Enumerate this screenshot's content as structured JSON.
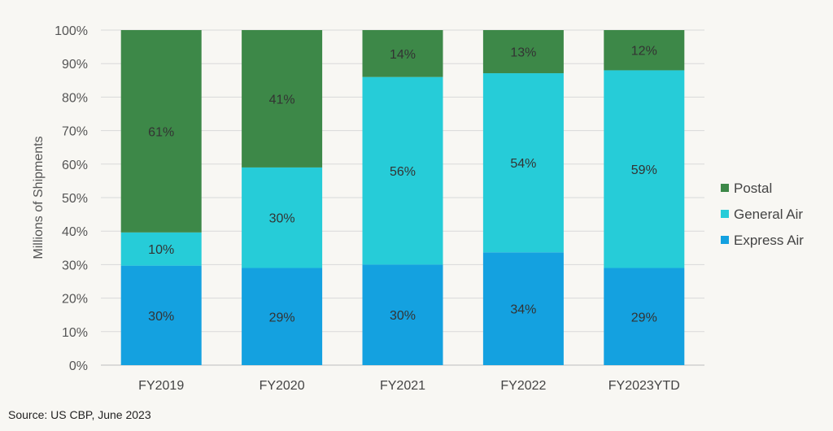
{
  "source_note": "Source: US CBP, June 2023",
  "chart_data": {
    "type": "bar",
    "stacked": true,
    "percent": true,
    "categories": [
      "FY2019",
      "FY2020",
      "FY2021",
      "FY2022",
      "FY2023YTD"
    ],
    "series": [
      {
        "name": "Express Air",
        "color": "#14a1e0",
        "values": [
          30,
          29,
          30,
          34,
          29
        ],
        "labels": [
          "30%",
          "29%",
          "30%",
          "34%",
          "29%"
        ]
      },
      {
        "name": "General Air",
        "color": "#26ccd8",
        "values": [
          10,
          30,
          56,
          54,
          59
        ],
        "labels": [
          "10%",
          "30%",
          "56%",
          "54%",
          "59%"
        ]
      },
      {
        "name": "Postal",
        "color": "#3d8848",
        "values": [
          61,
          41,
          14,
          13,
          12
        ],
        "labels": [
          "61%",
          "41%",
          "14%",
          "13%",
          "12%"
        ]
      }
    ],
    "ylabel": "Millions of Shipments",
    "ylim": [
      0,
      100
    ],
    "yticks": [
      "0%",
      "10%",
      "20%",
      "30%",
      "40%",
      "50%",
      "60%",
      "70%",
      "80%",
      "90%",
      "100%"
    ],
    "grid": true,
    "legend_position": "right",
    "legend_order": [
      "Postal",
      "General Air",
      "Express Air"
    ]
  }
}
